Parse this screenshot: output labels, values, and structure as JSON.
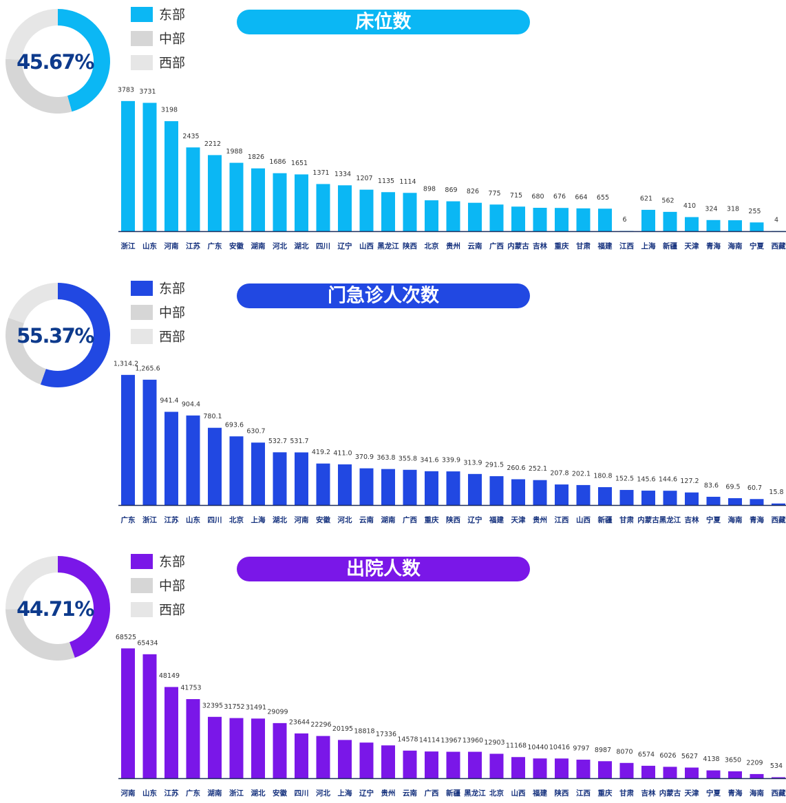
{
  "chart_data": [
    {
      "type": "bar",
      "title": "床位数",
      "color": "#0bb7f4",
      "categories": [
        "浙江",
        "山东",
        "河南",
        "江苏",
        "广东",
        "安徽",
        "湖南",
        "河北",
        "湖北",
        "四川",
        "辽宁",
        "山西",
        "黑龙江",
        "陕西",
        "北京",
        "贵州",
        "云南",
        "广西",
        "内蒙古",
        "吉林",
        "重庆",
        "甘肃",
        "福建",
        "江西",
        "上海",
        "新疆",
        "天津",
        "青海",
        "海南",
        "宁夏",
        "西藏"
      ],
      "values": [
        3783,
        3731,
        3198,
        2435,
        2212,
        1988,
        1826,
        1686,
        1651,
        1371,
        1334,
        1207,
        1135,
        1114,
        898,
        869,
        826,
        775,
        715,
        680,
        676,
        664,
        655,
        6,
        621,
        562,
        410,
        324,
        318,
        255,
        4
      ],
      "ylim": [
        0,
        3800
      ],
      "segments": [
        {
          "name": "东部",
          "color": "#0bb7f4",
          "value": 45.67,
          "value_label": "45.67%"
        },
        {
          "name": "中部",
          "color": "#d6d6d6",
          "value": 30
        },
        {
          "name": "西部",
          "color": "#e6e6e6",
          "value": 24.33
        }
      ]
    },
    {
      "type": "bar",
      "title": "门急诊人次数",
      "color": "#2148e2",
      "categories": [
        "广东",
        "浙江",
        "江苏",
        "山东",
        "四川",
        "北京",
        "上海",
        "湖北",
        "河南",
        "安徽",
        "河北",
        "云南",
        "湖南",
        "广西",
        "重庆",
        "陕西",
        "辽宁",
        "福建",
        "天津",
        "贵州",
        "江西",
        "山西",
        "新疆",
        "甘肃",
        "内蒙古",
        "黑龙江",
        "吉林",
        "宁夏",
        "海南",
        "青海",
        "西藏"
      ],
      "values": [
        1314.2,
        1265.6,
        941.4,
        904.4,
        780.1,
        693.6,
        630.7,
        532.7,
        531.7,
        419.2,
        411.0,
        370.9,
        363.8,
        355.8,
        341.6,
        339.9,
        313.9,
        291.5,
        260.6,
        252.1,
        207.8,
        202.1,
        180.8,
        152.5,
        145.6,
        144.6,
        127.2,
        83.6,
        69.5,
        60.7,
        15.8
      ],
      "value_labels": [
        "1,314.2",
        "1,265.6",
        "941.4",
        "904.4",
        "780.1",
        "693.6",
        "630.7",
        "532.7",
        "531.7",
        "419.2",
        "411.0",
        "370.9",
        "363.8",
        "355.8",
        "341.6",
        "339.9",
        "313.9",
        "291.5",
        "260.6",
        "252.1",
        "207.8",
        "202.1",
        "180.8",
        "152.5",
        "145.6",
        "144.6",
        "127.2",
        "83.6",
        "69.5",
        "60.7",
        "15.8"
      ],
      "ylim": [
        0,
        1320
      ],
      "segments": [
        {
          "name": "东部",
          "color": "#2148e2",
          "value": 55.37,
          "value_label": "55.37%"
        },
        {
          "name": "中部",
          "color": "#d6d6d6",
          "value": 25
        },
        {
          "name": "西部",
          "color": "#e6e6e6",
          "value": 19.63
        }
      ]
    },
    {
      "type": "bar",
      "title": "出院人数",
      "color": "#7a17e8",
      "categories": [
        "河南",
        "山东",
        "江苏",
        "广东",
        "湖南",
        "浙江",
        "湖北",
        "安徽",
        "四川",
        "河北",
        "上海",
        "辽宁",
        "贵州",
        "云南",
        "广西",
        "新疆",
        "黑龙江",
        "北京",
        "山西",
        "福建",
        "陕西",
        "江西",
        "重庆",
        "甘肃",
        "吉林",
        "内蒙古",
        "天津",
        "宁夏",
        "青海",
        "海南",
        "西藏"
      ],
      "values": [
        68525,
        65434,
        48149,
        41753,
        32395,
        31752,
        31491,
        29099,
        23644,
        22296,
        20195,
        18818,
        17336,
        14578,
        14114,
        13967,
        13960,
        12903,
        11168,
        10440,
        10416,
        9797,
        8987,
        8070,
        6574,
        6026,
        5627,
        4138,
        3650,
        2209,
        534
      ],
      "ylim": [
        0,
        69000
      ],
      "segments": [
        {
          "name": "东部",
          "color": "#7a17e8",
          "value": 44.71,
          "value_label": "44.71%"
        },
        {
          "name": "中部",
          "color": "#d6d6d6",
          "value": 30
        },
        {
          "name": "西部",
          "color": "#e6e6e6",
          "value": 25.29
        }
      ]
    }
  ]
}
